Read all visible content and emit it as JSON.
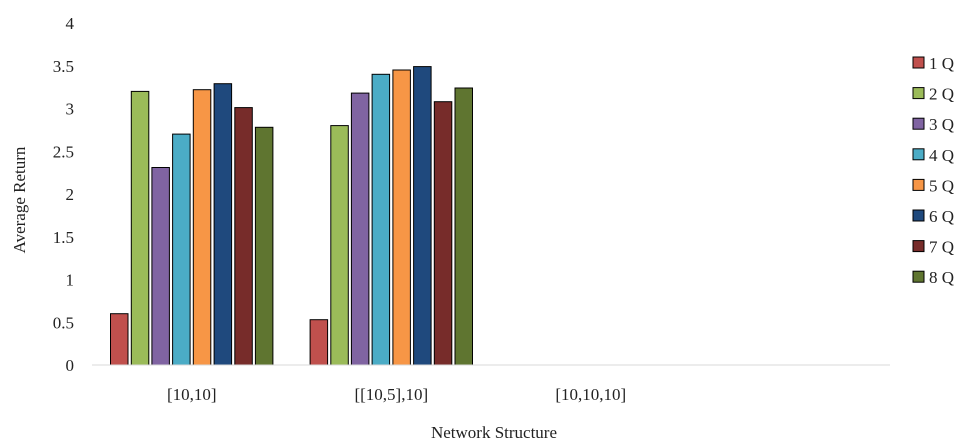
{
  "chart_data": {
    "type": "bar",
    "xlabel": "Network Structure",
    "ylabel": "Average Return",
    "ylim": [
      0,
      4
    ],
    "yticks": [
      0,
      0.5,
      1,
      1.5,
      2,
      2.5,
      3,
      3.5,
      4
    ],
    "ytick_labels": [
      "0",
      "0.5",
      "1",
      "1.5",
      "2",
      "2.5",
      "3",
      "3.5",
      "4"
    ],
    "categories": [
      "[10,10]",
      "[[10,5],10]",
      "[10,10,10]"
    ],
    "grid": false,
    "legend_position": "right",
    "series": [
      {
        "name": "1 Q",
        "color": "#c0504d",
        "values": [
          0.6,
          0.53,
          null
        ]
      },
      {
        "name": "2 Q",
        "color": "#9bbb59",
        "values": [
          3.2,
          2.8,
          null
        ]
      },
      {
        "name": "3 Q",
        "color": "#8064a2",
        "values": [
          2.31,
          3.18,
          null
        ]
      },
      {
        "name": "4 Q",
        "color": "#4bacc6",
        "values": [
          2.7,
          3.4,
          null
        ]
      },
      {
        "name": "5 Q",
        "color": "#f79646",
        "values": [
          3.22,
          3.45,
          null
        ]
      },
      {
        "name": "6 Q",
        "color": "#1f497d",
        "values": [
          3.29,
          3.49,
          null
        ]
      },
      {
        "name": "7 Q",
        "color": "#772c2a",
        "values": [
          3.01,
          3.08,
          null
        ]
      },
      {
        "name": "8 Q",
        "color": "#5f7530",
        "values": [
          2.78,
          3.24,
          null
        ]
      }
    ]
  }
}
